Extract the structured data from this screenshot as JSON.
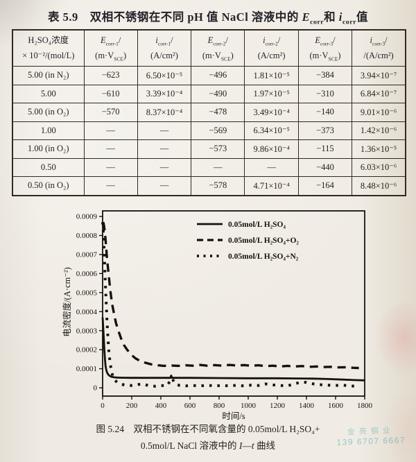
{
  "page_title_html": "表 5.9　双相不锈钢在不同 pH 值 NaCl 溶液中的 <i>E</i><sub>corr</sub>和 <i>i</i><sub>corr</sub>值",
  "table": {
    "headers_html": [
      "H₂SO₄浓度<br>× 10⁻²/(mol/L)",
      "<i>E</i><sub>corr-1</sub>/<br>(m·V<sub>SCE</sub>)",
      "<i>i</i><sub>corr-1</sub>/<br>(A/cm²)",
      "<i>E</i><sub>corr-2</sub>/<br>(m·V<sub>SCE</sub>)",
      "<i>i</i><sub>corr-2</sub>/<br>(A/cm²)",
      "<i>E</i><sub>corr-3</sub>/<br>(m·V<sub>SCE</sub>)",
      "<i>i</i><sub>corr-3</sub>/<br>/(A/cm²)"
    ],
    "rows": [
      [
        "5.00 (in N₂)",
        "−623",
        "6.50×10⁻⁵",
        "−496",
        "1.81×10⁻⁵",
        "−384",
        "3.94×10⁻⁷"
      ],
      [
        "5.00",
        "−610",
        "3.39×10⁻⁴",
        "−490",
        "1.97×10⁻⁵",
        "−310",
        "6.84×10⁻⁷"
      ],
      [
        "5.00 (in O₂)",
        "−570",
        "8.37×10⁻⁴",
        "−478",
        "3.49×10⁻⁴",
        "−140",
        "9.01×10⁻⁶"
      ],
      [
        "1.00",
        "—",
        "—",
        "−569",
        "6.34×10⁻⁵",
        "−373",
        "1.42×10⁻⁶"
      ],
      [
        "1.00 (in O₂)",
        "—",
        "—",
        "−573",
        "9.86×10⁻⁴",
        "−115",
        "1.36×10⁻⁵"
      ],
      [
        "0.50",
        "—",
        "—",
        "—",
        "—",
        "−440",
        "6.03×10⁻⁶"
      ],
      [
        "0.50 (in O₂)",
        "—",
        "—",
        "−578",
        "4.71×10⁻⁴",
        "−164",
        "8.48×10⁻⁶"
      ]
    ]
  },
  "chart_data": {
    "type": "line",
    "title": "",
    "xlabel": "时间/s",
    "ylabel": "电流密度/(A·cm⁻²)",
    "xlim": [
      0,
      1800
    ],
    "ylim": [
      0,
      0.0009
    ],
    "grid": false,
    "legend_position": "top-right-inside",
    "x_ticks": [
      0,
      200,
      400,
      600,
      800,
      1000,
      1200,
      1400,
      1600,
      1800
    ],
    "y_ticks": [
      0,
      0.0001,
      0.0002,
      0.0003,
      0.0004,
      0.0005,
      0.0006,
      0.0007,
      0.0008,
      0.0009
    ],
    "y_tick_labels": [
      "0",
      "0.0001",
      "0.0002",
      "0.0003",
      "0.0004",
      "0.0005",
      "0.0006",
      "0.0007",
      "0.0008",
      "0.0009"
    ],
    "series": [
      {
        "name": "0.05mol/L  H₂SO₄",
        "style": "solid",
        "points": [
          [
            0,
            0.00037
          ],
          [
            4,
            0.00032
          ],
          [
            8,
            0.00026
          ],
          [
            12,
            0.0002
          ],
          [
            16,
            0.00015
          ],
          [
            20,
            0.000115
          ],
          [
            26,
            9e-05
          ],
          [
            34,
            7.5e-05
          ],
          [
            44,
            6.5e-05
          ],
          [
            60,
            5.8e-05
          ],
          [
            90,
            5.4e-05
          ],
          [
            130,
            5.3e-05
          ],
          [
            200,
            5.2e-05
          ],
          [
            300,
            5.2e-05
          ],
          [
            400,
            5.2e-05
          ],
          [
            465,
            5.2e-05
          ],
          [
            471,
            6.4e-05
          ],
          [
            477,
            5.2e-05
          ],
          [
            600,
            5.2e-05
          ],
          [
            800,
            5.1e-05
          ],
          [
            1000,
            5e-05
          ],
          [
            1200,
            5e-05
          ],
          [
            1350,
            4.9e-05
          ],
          [
            1450,
            4.8e-05
          ],
          [
            1550,
            4.6e-05
          ],
          [
            1650,
            4.3e-05
          ],
          [
            1750,
            4e-05
          ],
          [
            1800,
            3.9e-05
          ]
        ]
      },
      {
        "name": "0.05mol/L  H₂SO₄+O₂",
        "style": "dashed",
        "points": [
          [
            5,
            0.00087
          ],
          [
            10,
            0.00085
          ],
          [
            15,
            0.00082
          ],
          [
            20,
            0.00078
          ],
          [
            25,
            0.00073
          ],
          [
            30,
            0.00068
          ],
          [
            38,
            0.00062
          ],
          [
            46,
            0.00056
          ],
          [
            55,
            0.0005
          ],
          [
            65,
            0.00044
          ],
          [
            78,
            0.00039
          ],
          [
            92,
            0.00034
          ],
          [
            108,
            0.0003
          ],
          [
            126,
            0.00026
          ],
          [
            146,
            0.000225
          ],
          [
            168,
            0.0002
          ],
          [
            195,
            0.000175
          ],
          [
            225,
            0.000155
          ],
          [
            260,
            0.00014
          ],
          [
            300,
            0.00013
          ],
          [
            340,
            0.000122
          ],
          [
            380,
            0.000118
          ],
          [
            420,
            0.000115
          ],
          [
            470,
            0.000117
          ],
          [
            520,
            0.000115
          ],
          [
            570,
            0.000118
          ],
          [
            620,
            0.000116
          ],
          [
            670,
            0.00012
          ],
          [
            720,
            0.000116
          ],
          [
            770,
            0.000119
          ],
          [
            820,
            0.000116
          ],
          [
            870,
            0.00012
          ],
          [
            920,
            0.000117
          ],
          [
            970,
            0.000119
          ],
          [
            1020,
            0.000116
          ],
          [
            1070,
            0.000118
          ],
          [
            1120,
            0.000114
          ],
          [
            1170,
            0.000116
          ],
          [
            1220,
            0.000112
          ],
          [
            1270,
            0.000115
          ],
          [
            1320,
            0.000112
          ],
          [
            1370,
            0.000114
          ],
          [
            1420,
            0.00011
          ],
          [
            1470,
            0.000112
          ],
          [
            1520,
            0.000109
          ],
          [
            1570,
            0.00011
          ],
          [
            1620,
            0.000107
          ],
          [
            1670,
            0.000108
          ],
          [
            1720,
            0.000105
          ],
          [
            1760,
            0.000104
          ]
        ]
      },
      {
        "name": "0.05mol/L  H₂SO₄+N₂",
        "style": "dotted",
        "points": [
          [
            0,
            0.00087
          ],
          [
            5,
            0.00082
          ],
          [
            8,
            0.00076
          ],
          [
            12,
            0.0007
          ],
          [
            15,
            0.00063
          ],
          [
            18,
            0.00056
          ],
          [
            22,
            0.00049
          ],
          [
            26,
            0.00042
          ],
          [
            30,
            0.00035
          ],
          [
            36,
            0.00027
          ],
          [
            42,
            0.0002
          ],
          [
            50,
            0.00014
          ],
          [
            60,
            9e-05
          ],
          [
            70,
            6e-05
          ],
          [
            85,
            4e-05
          ],
          [
            100,
            2.8e-05
          ],
          [
            120,
            2e-05
          ],
          [
            150,
            1.5e-05
          ],
          [
            200,
            1.2e-05
          ],
          [
            250,
            1.8e-05
          ],
          [
            280,
            2e-05
          ],
          [
            320,
            1e-05
          ],
          [
            360,
            8e-06
          ],
          [
            400,
            1.2e-05
          ],
          [
            440,
            1e-05
          ],
          [
            478,
            5e-05
          ],
          [
            495,
            2.2e-05
          ],
          [
            530,
            1.2e-05
          ],
          [
            570,
            1e-05
          ],
          [
            620,
            1.2e-05
          ],
          [
            670,
            1e-05
          ],
          [
            720,
            1.3e-05
          ],
          [
            770,
            1e-05
          ],
          [
            820,
            1.2e-05
          ],
          [
            870,
            1e-05
          ],
          [
            920,
            1.3e-05
          ],
          [
            970,
            1e-05
          ],
          [
            1020,
            1.4e-05
          ],
          [
            1070,
            1.2e-05
          ],
          [
            1120,
            2e-05
          ],
          [
            1170,
            1.5e-05
          ],
          [
            1220,
            1.2e-05
          ],
          [
            1270,
            1e-05
          ],
          [
            1320,
            2.2e-05
          ],
          [
            1370,
            3e-05
          ],
          [
            1400,
            2.8e-05
          ],
          [
            1450,
            2e-05
          ],
          [
            1500,
            1.6e-05
          ],
          [
            1550,
            1.4e-05
          ],
          [
            1600,
            1.2e-05
          ],
          [
            1650,
            1.4e-05
          ],
          [
            1700,
            1e-05
          ],
          [
            1750,
            8e-06
          ]
        ]
      }
    ]
  },
  "figure": {
    "caption_line1_html": "图 5.24　双相不锈钢在不同氧含量的 0.05mol/L H₂SO₄+",
    "caption_line2_html": "0.5mol/L NaCl 溶液中的 <i>I</i>—<i>t</i> 曲线"
  },
  "watermark": {
    "line1": "金亮钢业",
    "line2": "139 6707 6667"
  }
}
